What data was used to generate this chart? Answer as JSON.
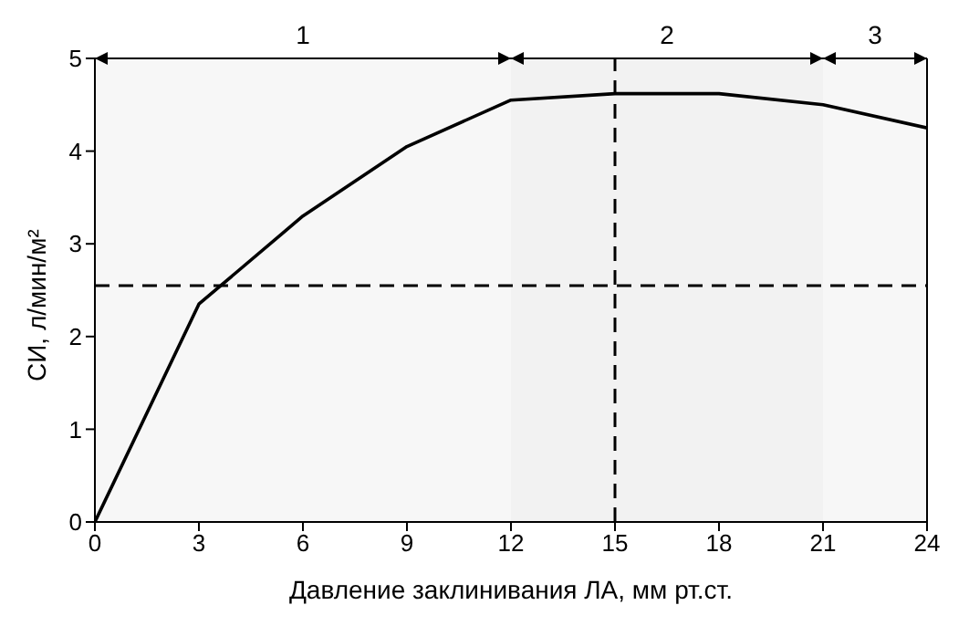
{
  "chart_data": {
    "type": "line",
    "xlabel": "Давление заклинивания ЛА, мм рт.ст.",
    "ylabel": "СИ, л/мин/м²",
    "x": [
      0,
      3,
      6,
      9,
      12,
      15,
      18,
      21,
      24
    ],
    "series": [
      {
        "color": "#000000",
        "values": [
          0,
          2.35,
          3.3,
          4.05,
          4.55,
          4.62,
          4.62,
          4.5,
          4.25
        ]
      }
    ],
    "xlim": [
      0,
      24
    ],
    "xticks": [
      0,
      3,
      6,
      9,
      12,
      15,
      18,
      21,
      24
    ],
    "ylim": [
      0,
      5
    ],
    "yticks": [
      0,
      1,
      2,
      3,
      4,
      5
    ],
    "marker": "none",
    "line_style": "solid",
    "ref_lines": [
      {
        "axis": "y",
        "value": 2.55,
        "line_style": "dashed",
        "color": "#000000"
      },
      {
        "axis": "x",
        "value": 15,
        "line_style": "dashed",
        "color": "#000000"
      }
    ],
    "bands": [
      {
        "axis": "x",
        "from": 0,
        "to": 12,
        "label": "1"
      },
      {
        "axis": "x",
        "from": 12,
        "to": 21,
        "label": "2"
      },
      {
        "axis": "x",
        "from": 21,
        "to": 24,
        "label": "3"
      }
    ]
  }
}
